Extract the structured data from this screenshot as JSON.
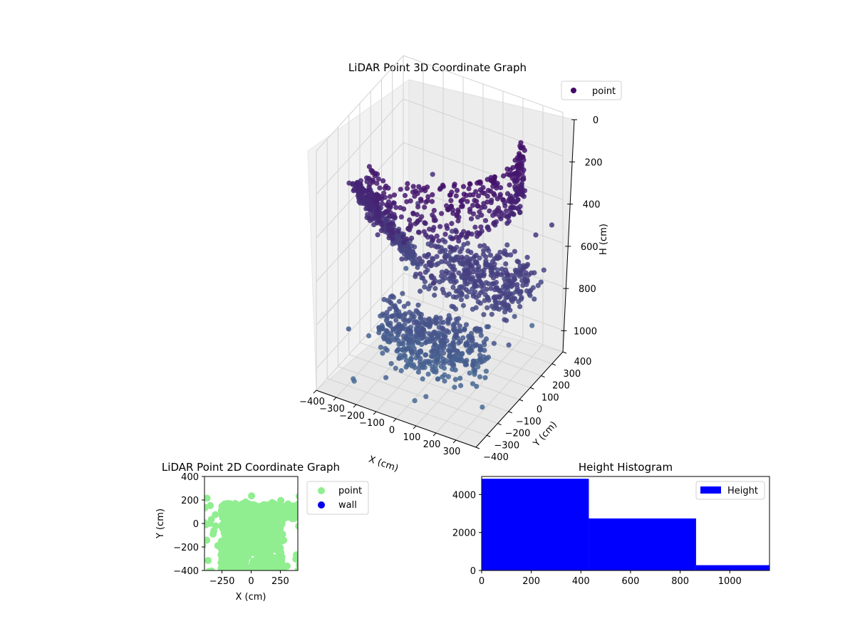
{
  "chart_data": [
    {
      "type": "scatter",
      "projection": "3d",
      "title": "LiDAR Point 3D Coordinate Graph",
      "xlabel": "X (cm)",
      "ylabel": "Y (cm)",
      "zlabel": "H (cm)",
      "xlim": [
        -400,
        400
      ],
      "ylim": [
        -400,
        400
      ],
      "zlim": [
        0,
        1100
      ],
      "z_inverted": true,
      "x_ticks": [
        "−400",
        "−300",
        "−200",
        "−100",
        "0",
        "100",
        "200",
        "300"
      ],
      "y_ticks": [
        "−400",
        "−300",
        "−200",
        "−100",
        "0",
        "100",
        "200",
        "300",
        "400"
      ],
      "z_ticks": [
        "0",
        "200",
        "400",
        "600",
        "800",
        "1000"
      ],
      "legend": {
        "placement": "top-right",
        "entries": [
          {
            "name": "point",
            "color": "#440a68"
          }
        ]
      },
      "colormap": "viridis (dark purple to blue-grey)",
      "grid": true
    },
    {
      "type": "scatter",
      "title": "LiDAR Point 2D Coordinate Graph",
      "xlabel": "X (cm)",
      "ylabel": "Y (cm)",
      "xlim": [
        -400,
        400
      ],
      "ylim": [
        -400,
        400
      ],
      "x_ticks": [
        "−250",
        "0",
        "250"
      ],
      "y_ticks": [
        "400",
        "200",
        "0",
        "−200",
        "−400"
      ],
      "series": [
        {
          "name": "point",
          "color": "#90ee90"
        },
        {
          "name": "wall",
          "color": "#0000ee"
        }
      ],
      "legend": {
        "placement": "outside-right"
      }
    },
    {
      "type": "bar",
      "subtype": "histogram",
      "title": "Height Histogram",
      "bins": [
        {
          "x0": 0,
          "x1": 432,
          "count": 4830
        },
        {
          "x0": 432,
          "x1": 864,
          "count": 2740
        },
        {
          "x0": 864,
          "x1": 1160,
          "count": 280
        }
      ],
      "xlim": [
        0,
        1160
      ],
      "ylim": [
        0,
        4950
      ],
      "x_ticks": [
        "0",
        "200",
        "400",
        "600",
        "800",
        "1000"
      ],
      "y_ticks": [
        "0",
        "2000",
        "4000"
      ],
      "series": [
        {
          "name": "Height",
          "color": "#0000ff"
        }
      ],
      "legend": {
        "placement": "top-right"
      }
    }
  ]
}
